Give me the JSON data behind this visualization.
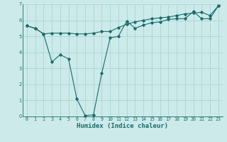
{
  "xlabel": "Humidex (Indice chaleur)",
  "bg_color": "#cceaea",
  "line_color": "#1a6b6b",
  "grid_color": "#aad4d4",
  "xlim": [
    -0.5,
    23.5
  ],
  "ylim": [
    0,
    7
  ],
  "xticks": [
    0,
    1,
    2,
    3,
    4,
    5,
    6,
    7,
    8,
    9,
    10,
    11,
    12,
    13,
    14,
    15,
    16,
    17,
    18,
    19,
    20,
    21,
    22,
    23
  ],
  "yticks": [
    0,
    1,
    2,
    3,
    4,
    5,
    6,
    7
  ],
  "line1_x": [
    0,
    1,
    2,
    3,
    4,
    5,
    6,
    7,
    8,
    9,
    10,
    11,
    12,
    13,
    14,
    15,
    16,
    17,
    18,
    19,
    20,
    21,
    22,
    23
  ],
  "line1_y": [
    5.65,
    5.5,
    5.15,
    5.2,
    5.2,
    5.2,
    5.15,
    5.15,
    5.2,
    5.3,
    5.3,
    5.55,
    5.75,
    5.9,
    6.0,
    6.1,
    6.15,
    6.2,
    6.3,
    6.4,
    6.45,
    6.5,
    6.3,
    6.9
  ],
  "line2_x": [
    0,
    1,
    2,
    3,
    4,
    5,
    6,
    7,
    8,
    9,
    10,
    11,
    12,
    13,
    14,
    15,
    16,
    17,
    18,
    19,
    20,
    21,
    22,
    23
  ],
  "line2_y": [
    5.65,
    5.5,
    5.15,
    3.4,
    3.85,
    3.6,
    1.1,
    0.05,
    0.1,
    2.7,
    4.9,
    5.0,
    5.95,
    5.5,
    5.7,
    5.85,
    5.9,
    6.05,
    6.1,
    6.1,
    6.55,
    6.1,
    6.1,
    6.9
  ],
  "marker": "D",
  "markersize": 1.8,
  "linewidth": 0.8,
  "tick_fontsize": 4.8,
  "xlabel_fontsize": 6.5,
  "title_color": "#1a6b6b"
}
